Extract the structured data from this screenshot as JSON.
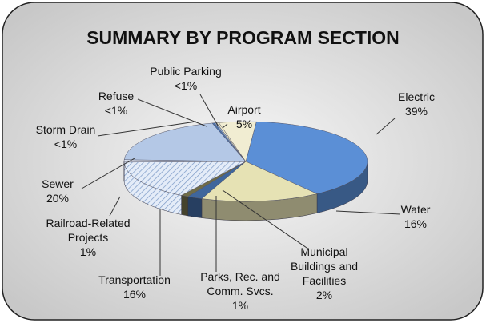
{
  "chart_data": {
    "type": "pie3d",
    "title": "SUMMARY BY PROGRAM SECTION",
    "categories": [
      "Electric",
      "Water",
      "Municipal Buildings and Facilities",
      "Parks, Rec. and Comm. Svcs.",
      "Transportation",
      "Railroad-Related Projects",
      "Sewer",
      "Storm Drain",
      "Refuse",
      "Public Parking",
      "Airport"
    ],
    "values": [
      39,
      16,
      2,
      1,
      16,
      1,
      20,
      0.3,
      0.3,
      0.3,
      5
    ],
    "value_labels": [
      "39%",
      "16%",
      "2%",
      "1%",
      "16%",
      "1%",
      "20%",
      "<1%",
      "<1%",
      "<1%",
      "5%"
    ],
    "colors": [
      "#5b8fd6",
      "#e6e2b4",
      "#3f669c",
      "#6f6c48",
      "#c9d7ee",
      "#dfe6f3",
      "#b4c8e6",
      "#4a72ad",
      "#8fa6c8",
      "#efe9c6",
      "#f1edd2"
    ],
    "hatched": [
      false,
      false,
      false,
      false,
      true,
      false,
      false,
      false,
      false,
      false,
      false
    ]
  }
}
